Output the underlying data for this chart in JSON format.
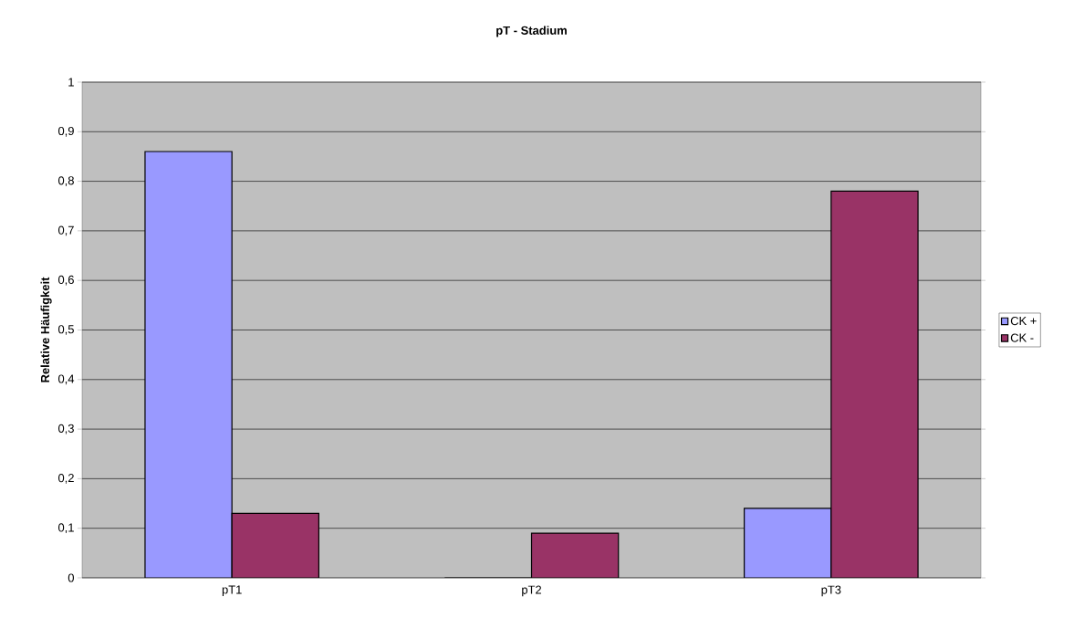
{
  "chart_data": {
    "type": "bar",
    "title": "pT - Stadium",
    "ylabel": "Relative Häufigkeit",
    "categories": [
      "pT1",
      "pT2",
      "pT3"
    ],
    "series": [
      {
        "name": "CK +",
        "color": "#9999ff",
        "values": [
          0.86,
          0,
          0.14
        ]
      },
      {
        "name": "CK -",
        "color": "#993366",
        "values": [
          0.13,
          0.09,
          0.78
        ]
      }
    ],
    "ylim": [
      0,
      1
    ],
    "yticks": [
      {
        "value": 0,
        "label": "0"
      },
      {
        "value": 0.1,
        "label": "0,1"
      },
      {
        "value": 0.2,
        "label": "0,2"
      },
      {
        "value": 0.3,
        "label": "0,3"
      },
      {
        "value": 0.4,
        "label": "0,4"
      },
      {
        "value": 0.5,
        "label": "0,5"
      },
      {
        "value": 0.6,
        "label": "0,6"
      },
      {
        "value": 0.7,
        "label": "0,7"
      },
      {
        "value": 0.8,
        "label": "0,8"
      },
      {
        "value": 0.9,
        "label": "0,9"
      },
      {
        "value": 1,
        "label": "1"
      }
    ],
    "grid": "y",
    "legend": "right"
  }
}
